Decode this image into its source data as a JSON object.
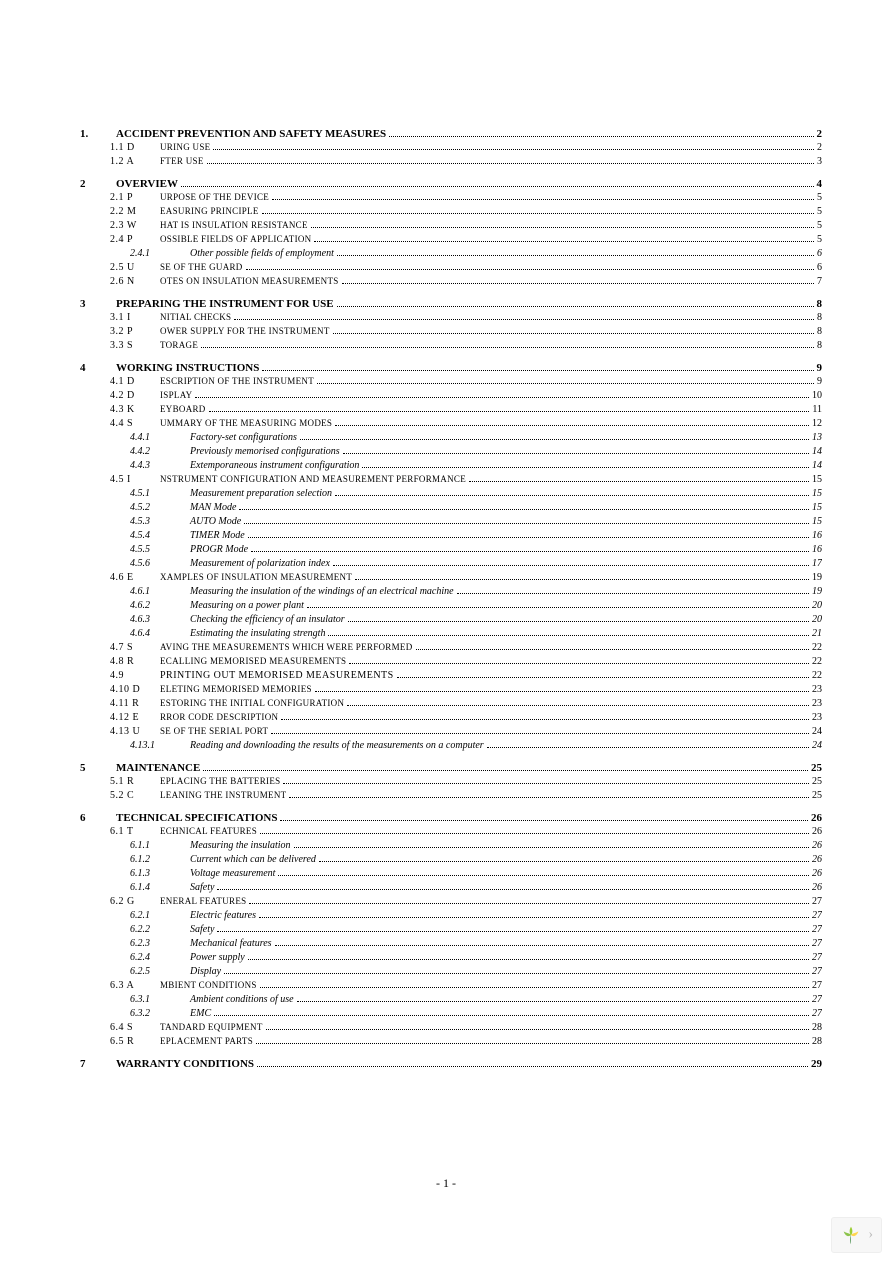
{
  "page_number_label": "- 1 -",
  "colors": {
    "text": "#000000",
    "background": "#ffffff",
    "leader": "#000000"
  },
  "typography": {
    "body_font": "Times New Roman",
    "base_size_pt": 11,
    "heading_weight": "bold",
    "sub_style": "small-caps",
    "subsub_style": "italic"
  },
  "toc": [
    {
      "level": 0,
      "num": "1.",
      "title": "ACCIDENT PREVENTION AND SAFETY MEASURES",
      "page": "2"
    },
    {
      "level": 1,
      "num": "1.1",
      "prefix": "D",
      "title_sc": "URING USE",
      "page": "2"
    },
    {
      "level": 1,
      "num": "1.2",
      "prefix": "A",
      "title_sc": "FTER USE",
      "page": "3"
    },
    {
      "level": 0,
      "num": "2",
      "title": "OVERVIEW",
      "page": "4"
    },
    {
      "level": 1,
      "num": "2.1",
      "prefix": "P",
      "title_sc": "URPOSE OF THE DEVICE",
      "page": "5"
    },
    {
      "level": 1,
      "num": "2.2",
      "prefix": "M",
      "title_sc": "EASURING PRINCIPLE",
      "page": "5"
    },
    {
      "level": 1,
      "num": "2.3",
      "prefix": "W",
      "title_sc": "HAT IS INSULATION RESISTANCE",
      "page": "5"
    },
    {
      "level": 1,
      "num": "2.4",
      "prefix": "P",
      "title_sc": "OSSIBLE FIELDS OF APPLICATION",
      "page": "5"
    },
    {
      "level": 2,
      "num": "2.4.1",
      "title": "Other possible fields of employment",
      "page": "6"
    },
    {
      "level": 1,
      "num": "2.5",
      "prefix": "U",
      "title_sc": "SE OF THE GUARD",
      "page": "6"
    },
    {
      "level": 1,
      "num": "2.6",
      "prefix": "N",
      "title_sc": "OTES ON INSULATION MEASUREMENTS",
      "page": "7"
    },
    {
      "level": 0,
      "num": "3",
      "title": "PREPARING THE INSTRUMENT FOR USE",
      "page": "8"
    },
    {
      "level": 1,
      "num": "3.1",
      "prefix": "I",
      "title_sc": "NITIAL CHECKS",
      "page": "8"
    },
    {
      "level": 1,
      "num": "3.2",
      "prefix": "P",
      "title_sc": "OWER SUPPLY FOR THE INSTRUMENT",
      "page": "8"
    },
    {
      "level": 1,
      "num": "3.3",
      "prefix": "S",
      "title_sc": "TORAGE",
      "page": "8"
    },
    {
      "level": 0,
      "num": "4",
      "title": "WORKING INSTRUCTIONS",
      "page": "9"
    },
    {
      "level": 1,
      "num": "4.1",
      "prefix": "D",
      "title_sc": "ESCRIPTION OF THE INSTRUMENT",
      "page": "9"
    },
    {
      "level": 1,
      "num": "4.2",
      "prefix": "D",
      "title_sc": "ISPLAY",
      "page": "10"
    },
    {
      "level": 1,
      "num": "4.3",
      "prefix": "K",
      "title_sc": "EYBOARD",
      "page": "11"
    },
    {
      "level": 1,
      "num": "4.4",
      "prefix": "S",
      "title_sc": "UMMARY OF THE MEASURING MODES",
      "page": "12"
    },
    {
      "level": 2,
      "num": "4.4.1",
      "title": "Factory-set configurations",
      "page": "13"
    },
    {
      "level": 2,
      "num": "4.4.2",
      "title": "Previously memorised configurations",
      "page": "14"
    },
    {
      "level": 2,
      "num": "4.4.3",
      "title": "Extemporaneous instrument configuration",
      "page": "14"
    },
    {
      "level": 1,
      "num": "4.5",
      "prefix": "I",
      "title_sc": "NSTRUMENT CONFIGURATION AND MEASUREMENT PERFORMANCE",
      "page": "15"
    },
    {
      "level": 2,
      "num": "4.5.1",
      "title": "Measurement preparation selection",
      "page": "15"
    },
    {
      "level": 2,
      "num": "4.5.2",
      "title": "MAN Mode",
      "page": "15"
    },
    {
      "level": 2,
      "num": "4.5.3",
      "title": "AUTO Mode",
      "page": "15"
    },
    {
      "level": 2,
      "num": "4.5.4",
      "title": "TIMER Mode",
      "page": "16"
    },
    {
      "level": 2,
      "num": "4.5.5",
      "title": "PROGR Mode",
      "page": "16"
    },
    {
      "level": 2,
      "num": "4.5.6",
      "title": "Measurement of polarization index",
      "page": "17"
    },
    {
      "level": 1,
      "num": "4.6",
      "prefix": "E",
      "title_sc": "XAMPLES OF INSULATION MEASUREMENT",
      "page": "19"
    },
    {
      "level": 2,
      "num": "4.6.1",
      "title": "Measuring the insulation of the windings of an electrical machine",
      "page": "19"
    },
    {
      "level": 2,
      "num": "4.6.2",
      "title": "Measuring on a power plant",
      "page": "20"
    },
    {
      "level": 2,
      "num": "4.6.3",
      "title": "Checking the efficiency of an insulator",
      "page": "20"
    },
    {
      "level": 2,
      "num": "4.6.4",
      "title": "Estimating the insulating strength",
      "page": "21"
    },
    {
      "level": 1,
      "num": "4.7",
      "prefix": "S",
      "title_sc": "AVING THE MEASUREMENTS WHICH WERE PERFORMED",
      "page": "22"
    },
    {
      "level": 1,
      "num": "4.8",
      "prefix": "R",
      "title_sc": "ECALLING MEMORISED MEASUREMENTS",
      "page": "22"
    },
    {
      "level": 1,
      "num": "4.9",
      "prefix": "",
      "title_plain": "PRINTING OUT MEMORISED MEASUREMENTS",
      "page": "22"
    },
    {
      "level": 1,
      "num": "4.10",
      "prefix": "D",
      "title_sc": "ELETING MEMORISED MEMORIES",
      "page": "23"
    },
    {
      "level": 1,
      "num": "4.11",
      "prefix": "R",
      "title_sc": "ESTORING THE INITIAL CONFIGURATION",
      "page": "23"
    },
    {
      "level": 1,
      "num": "4.12",
      "prefix": "E",
      "title_sc": "RROR CODE DESCRIPTION",
      "page": "23"
    },
    {
      "level": 1,
      "num": "4.13",
      "prefix": "U",
      "title_sc": "SE OF THE SERIAL PORT",
      "page": "24"
    },
    {
      "level": 2,
      "num": "4.13.1",
      "title": "Reading and downloading the results of the measurements on a computer",
      "page": "24"
    },
    {
      "level": 0,
      "num": "5",
      "title": "MAINTENANCE",
      "page": "25"
    },
    {
      "level": 1,
      "num": "5.1",
      "prefix": "R",
      "title_sc": "EPLACING THE BATTERIES",
      "page": "25"
    },
    {
      "level": 1,
      "num": "5.2",
      "prefix": "C",
      "title_sc": "LEANING THE INSTRUMENT",
      "page": "25"
    },
    {
      "level": 0,
      "num": "6",
      "title": "TECHNICAL SPECIFICATIONS",
      "page": "26"
    },
    {
      "level": 1,
      "num": "6.1",
      "prefix": "T",
      "title_sc": "ECHNICAL FEATURES",
      "page": "26"
    },
    {
      "level": 2,
      "num": "6.1.1",
      "title": "Measuring the insulation",
      "page": "26"
    },
    {
      "level": 2,
      "num": "6.1.2",
      "title": "Current which can be delivered",
      "page": "26"
    },
    {
      "level": 2,
      "num": "6.1.3",
      "title": "Voltage measurement",
      "page": "26"
    },
    {
      "level": 2,
      "num": "6.1.4",
      "title": "Safety",
      "page": "26"
    },
    {
      "level": 1,
      "num": "6.2",
      "prefix": "G",
      "title_sc": "ENERAL FEATURES",
      "page": "27"
    },
    {
      "level": 2,
      "num": "6.2.1",
      "title": "Electric features",
      "page": "27"
    },
    {
      "level": 2,
      "num": "6.2.2",
      "title": "Safety",
      "page": "27"
    },
    {
      "level": 2,
      "num": "6.2.3",
      "title": "Mechanical features",
      "page": "27"
    },
    {
      "level": 2,
      "num": "6.2.4",
      "title": "Power supply",
      "page": "27"
    },
    {
      "level": 2,
      "num": "6.2.5",
      "title": "Display",
      "page": "27"
    },
    {
      "level": 1,
      "num": "6.3",
      "prefix": "A",
      "title_sc": "MBIENT CONDITIONS",
      "page": "27"
    },
    {
      "level": 2,
      "num": "6.3.1",
      "title": "Ambient conditions of use",
      "page": "27"
    },
    {
      "level": 2,
      "num": "6.3.2",
      "title": "EMC",
      "page": "27"
    },
    {
      "level": 1,
      "num": "6.4",
      "prefix": "S",
      "title_sc": "TANDARD EQUIPMENT",
      "page": "28"
    },
    {
      "level": 1,
      "num": "6.5",
      "prefix": "R",
      "title_sc": "EPLACEMENT PARTS",
      "page": "28"
    },
    {
      "level": 0,
      "num": "7",
      "title": "WARRANTY CONDITIONS",
      "page": "29"
    }
  ],
  "corner_widget": {
    "logo_colors": [
      "#9acd32",
      "#ffd54f",
      "#8bc34a",
      "#2e7d32"
    ],
    "chevron": "›"
  }
}
